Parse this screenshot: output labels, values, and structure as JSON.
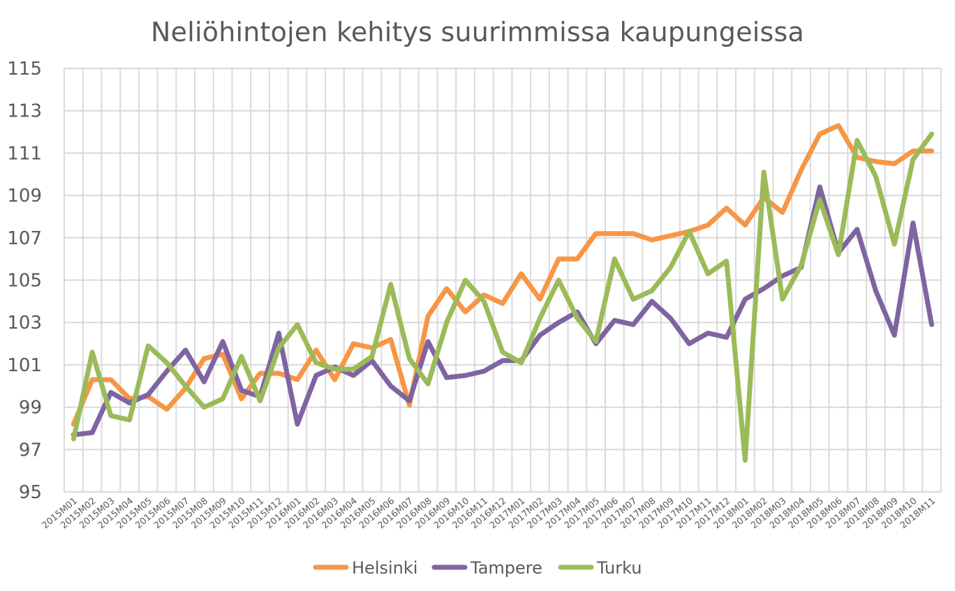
{
  "chart_data": {
    "type": "line",
    "title": "Neliöhintojen kehitys suurimmissa kaupungeissa",
    "xlabel": "",
    "ylabel": "",
    "ylim": [
      95,
      115
    ],
    "yticks": [
      "95",
      "97",
      "99",
      "101",
      "103",
      "105",
      "107",
      "109",
      "111",
      "113",
      "115"
    ],
    "grid": true,
    "legend_position": "bottom",
    "x": [
      "2015M01",
      "2015M02",
      "2015M03",
      "2015M04",
      "2015M05",
      "2015M06",
      "2015M07",
      "2015M08",
      "2015M09",
      "2015M10",
      "2015M11",
      "2015M12",
      "2016M01",
      "2016M02",
      "2016M03",
      "2016M04",
      "2016M05",
      "2016M06",
      "2016M07",
      "2016M08",
      "2016M09",
      "2016M10",
      "2016M11",
      "2016M12",
      "2017M01",
      "2017M02",
      "2017M03",
      "2017M04",
      "2017M05",
      "2017M06",
      "2017M07",
      "2017M08",
      "2017M09",
      "2017M10",
      "2017M11",
      "2017M12",
      "2018M01",
      "2018M02",
      "2018M03",
      "2018M04",
      "2018M05",
      "2018M06",
      "2018M07",
      "2018M08",
      "2018M09",
      "2018M10",
      "2018M11"
    ],
    "x_tick_labels": [
      "2015M01",
      "2015M02",
      "2015M03",
      "2015M04",
      "2015M05",
      "2015M06",
      "2015M07",
      "2015M08",
      "2015M09",
      "2015M10",
      "2015M11",
      "2015M12",
      "2016M01",
      "2016M02",
      "2016M03",
      "2016M04",
      "2016M05",
      "2016M06",
      "2016M07",
      "2016M08",
      "2016M09",
      "2016M10",
      "2016M11",
      "2016M12",
      "2017M01",
      "2017M02",
      "2017M03",
      "2017M04",
      "2017M05",
      "2017M06",
      "2017M07",
      "2017M08",
      "2017M09",
      "2017M10",
      "2017M11",
      "2017M12",
      "2018M01",
      "2018M02",
      "2018M03",
      "2018M04",
      "2018M05",
      "2018M06",
      "2018M07",
      "2018M08",
      "2018M09",
      "2018M10",
      "2018M11"
    ],
    "series": [
      {
        "name": "Helsinki",
        "color": "#F79646",
        "values": [
          98.2,
          100.3,
          100.3,
          99.4,
          99.5,
          98.9,
          99.9,
          101.3,
          101.5,
          99.4,
          100.6,
          100.6,
          100.3,
          101.7,
          100.3,
          102.0,
          101.8,
          102.2,
          99.1,
          103.3,
          104.6,
          103.5,
          104.3,
          103.9,
          105.3,
          104.1,
          106.0,
          106.0,
          107.2,
          107.2,
          107.2,
          106.9,
          107.1,
          107.3,
          107.6,
          108.4,
          107.6,
          108.9,
          108.2,
          110.2,
          111.9,
          112.3,
          110.8,
          110.6,
          110.5,
          111.1,
          111.1
        ]
      },
      {
        "name": "Tampere",
        "color": "#8064A2",
        "values": [
          97.7,
          97.8,
          99.7,
          99.2,
          99.6,
          100.7,
          101.7,
          100.2,
          102.1,
          99.8,
          99.5,
          102.5,
          98.2,
          100.5,
          100.9,
          100.5,
          101.2,
          100.0,
          99.3,
          102.1,
          100.4,
          100.5,
          100.7,
          101.2,
          101.2,
          102.4,
          103.0,
          103.5,
          102.0,
          103.1,
          102.9,
          104.0,
          103.2,
          102.0,
          102.5,
          102.3,
          104.1,
          104.6,
          105.2,
          105.6,
          109.4,
          106.3,
          107.4,
          104.5,
          102.4,
          107.7,
          102.9
        ]
      },
      {
        "name": "Turku",
        "color": "#9BBB59",
        "values": [
          97.5,
          101.6,
          98.6,
          98.4,
          101.9,
          101.1,
          100.0,
          99.0,
          99.4,
          101.4,
          99.3,
          101.8,
          102.9,
          101.1,
          100.8,
          100.8,
          101.4,
          104.8,
          101.3,
          100.1,
          103.0,
          105.0,
          104.0,
          101.6,
          101.1,
          103.2,
          105.0,
          103.2,
          102.1,
          106.0,
          104.1,
          104.5,
          105.6,
          107.3,
          105.3,
          105.9,
          96.5,
          110.1,
          104.1,
          105.7,
          108.8,
          106.2,
          111.6,
          109.9,
          106.7,
          110.7,
          111.9
        ]
      }
    ]
  }
}
